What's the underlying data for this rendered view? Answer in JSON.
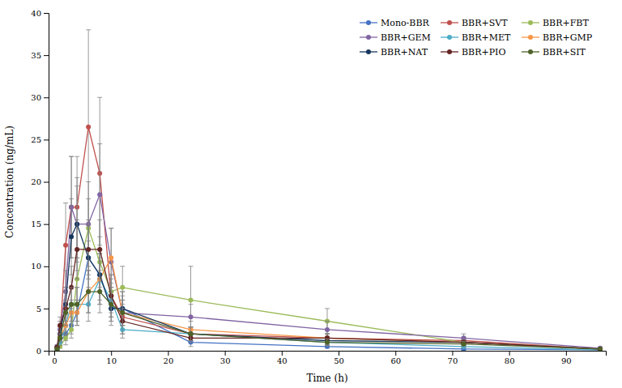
{
  "chart_data": {
    "type": "line",
    "xlabel": "Time (h)",
    "ylabel": "Concentration (ng/mL)",
    "x": [
      0.5,
      1,
      2,
      3,
      4,
      6,
      8,
      10,
      12,
      24,
      48,
      72,
      96
    ],
    "series": [
      {
        "name": "Mono-BBR",
        "color": "#4472C4",
        "values": [
          0.3,
          1.0,
          2.0,
          3.0,
          4.5,
          11.0,
          9.0,
          5.0,
          5.0,
          1.0,
          0.5,
          0.2,
          0.1
        ],
        "yerr": [
          0.1,
          0.4,
          0.8,
          1.0,
          1.5,
          2.0,
          2.0,
          1.5,
          1.5,
          0.5,
          0.2,
          0.1,
          0.05
        ]
      },
      {
        "name": "BBR+SVT",
        "color": "#C0504D",
        "values": [
          0.3,
          1.5,
          12.5,
          17.0,
          17.0,
          26.5,
          21.0,
          6.5,
          4.0,
          2.0,
          1.5,
          1.2,
          0.2
        ],
        "yerr": [
          0.1,
          0.5,
          5.0,
          6.0,
          6.0,
          11.5,
          9.0,
          2.0,
          1.5,
          0.8,
          0.5,
          0.4,
          0.1
        ]
      },
      {
        "name": "BBR+FBT",
        "color": "#9BBB59",
        "values": [
          0.1,
          0.5,
          1.5,
          2.5,
          8.5,
          14.5,
          10.5,
          7.0,
          7.5,
          6.0,
          3.5,
          1.0,
          0.2
        ],
        "yerr": [
          0.05,
          0.2,
          0.8,
          1.0,
          2.5,
          3.5,
          3.0,
          2.0,
          2.5,
          4.0,
          1.5,
          0.4,
          0.1
        ]
      },
      {
        "name": "BBR+GEM",
        "color": "#8064A2",
        "values": [
          0.5,
          2.5,
          7.0,
          17.0,
          15.0,
          15.0,
          18.5,
          10.5,
          4.5,
          4.0,
          2.5,
          1.5,
          0.3
        ],
        "yerr": [
          0.2,
          1.0,
          2.5,
          6.0,
          5.5,
          5.0,
          6.0,
          4.0,
          2.5,
          1.5,
          1.0,
          0.5,
          0.1
        ]
      },
      {
        "name": "BBR+MET",
        "color": "#4BACC6",
        "values": [
          0.2,
          1.0,
          3.0,
          5.5,
          5.5,
          5.5,
          8.5,
          6.0,
          2.5,
          2.0,
          1.0,
          0.5,
          0.1
        ],
        "yerr": [
          0.1,
          0.4,
          1.2,
          2.0,
          2.0,
          2.0,
          3.0,
          2.0,
          1.0,
          0.8,
          0.4,
          0.2,
          0.05
        ]
      },
      {
        "name": "BBR+GMP",
        "color": "#F79646",
        "values": [
          0.4,
          1.5,
          3.0,
          4.5,
          4.5,
          7.0,
          8.5,
          11.0,
          4.5,
          2.5,
          1.5,
          1.0,
          0.2
        ],
        "yerr": [
          0.15,
          0.5,
          1.0,
          1.5,
          1.5,
          2.5,
          3.0,
          3.5,
          1.5,
          1.0,
          0.5,
          0.3,
          0.1
        ]
      },
      {
        "name": "BBR+NAT",
        "color": "#17375E",
        "values": [
          0.4,
          2.0,
          5.5,
          13.5,
          15.0,
          11.0,
          9.0,
          5.0,
          5.0,
          2.0,
          1.2,
          1.0,
          0.2
        ],
        "yerr": [
          0.15,
          0.8,
          2.0,
          4.5,
          4.5,
          4.0,
          3.0,
          2.0,
          2.0,
          0.8,
          0.5,
          0.3,
          0.1
        ]
      },
      {
        "name": "BBR+PIO",
        "color": "#632523",
        "values": [
          0.4,
          3.0,
          5.0,
          7.5,
          12.0,
          12.0,
          12.0,
          6.5,
          3.5,
          1.5,
          1.5,
          1.0,
          0.2
        ],
        "yerr": [
          0.15,
          1.0,
          2.0,
          2.5,
          3.5,
          3.5,
          3.5,
          2.5,
          1.5,
          0.5,
          0.5,
          0.3,
          0.1
        ]
      },
      {
        "name": "BBR+SIT",
        "color": "#4F6228",
        "values": [
          0.2,
          1.5,
          4.5,
          5.5,
          5.5,
          7.0,
          7.0,
          5.5,
          4.5,
          2.0,
          1.0,
          0.8,
          0.2
        ],
        "yerr": [
          0.1,
          0.5,
          1.5,
          2.0,
          2.0,
          2.5,
          2.5,
          2.0,
          1.5,
          0.8,
          0.4,
          0.3,
          0.1
        ]
      }
    ],
    "xlim": [
      -1,
      97
    ],
    "ylim": [
      0,
      40
    ],
    "xticks": [
      0,
      10,
      20,
      30,
      40,
      50,
      60,
      70,
      80,
      90
    ],
    "yticks": [
      0,
      5,
      10,
      15,
      20,
      25,
      30,
      35,
      40
    ],
    "marker": "circle",
    "grid": false,
    "legend": "upper right"
  }
}
